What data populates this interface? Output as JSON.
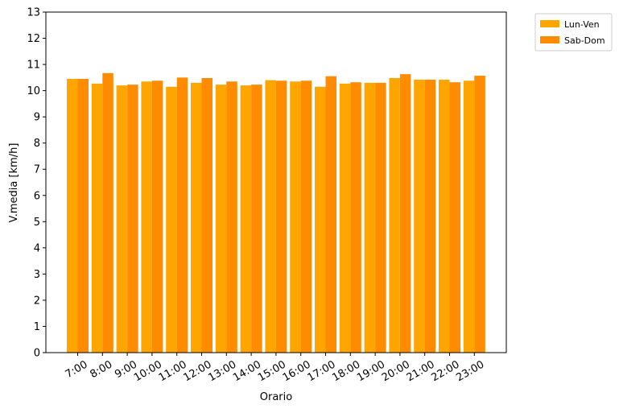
{
  "chart_data": {
    "type": "bar",
    "title": "",
    "xlabel": "Orario",
    "ylabel": "V.media [km/h]",
    "ylim": [
      0,
      13
    ],
    "yticks": [
      0,
      1,
      2,
      3,
      4,
      5,
      6,
      7,
      8,
      9,
      10,
      11,
      12,
      13
    ],
    "grid": false,
    "legend_position": "outside-top-right",
    "categories": [
      "7:00",
      "8:00",
      "9:00",
      "10:00",
      "11:00",
      "12:00",
      "13:00",
      "14:00",
      "15:00",
      "16:00",
      "17:00",
      "18:00",
      "19:00",
      "20:00",
      "21:00",
      "22:00",
      "23:00"
    ],
    "series": [
      {
        "name": "Lun-Ven",
        "color": "#FFA500",
        "values": [
          10.45,
          10.27,
          10.2,
          10.35,
          10.15,
          10.3,
          10.23,
          10.2,
          10.4,
          10.35,
          10.15,
          10.27,
          10.3,
          10.48,
          10.42,
          10.42,
          10.38
        ]
      },
      {
        "name": "Sab-Dom",
        "color": "#FF8C00",
        "values": [
          10.45,
          10.67,
          10.23,
          10.38,
          10.5,
          10.48,
          10.35,
          10.23,
          10.38,
          10.38,
          10.55,
          10.32,
          10.3,
          10.63,
          10.42,
          10.32,
          10.57
        ]
      }
    ]
  }
}
